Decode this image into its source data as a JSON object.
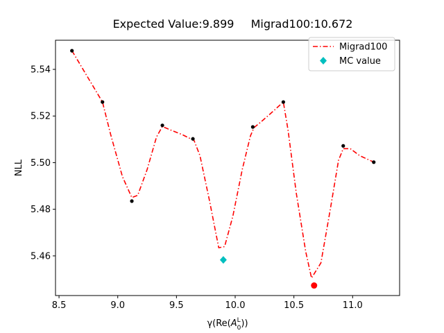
{
  "chart_data": {
    "type": "line",
    "title_parts": [
      "Expected Value:9.899",
      "Migrad100:10.672"
    ],
    "xlabel_prefix": "γ(Re(",
    "xlabel_var": "A",
    "xlabel_sup": "L",
    "xlabel_sub": "0",
    "xlabel_suffix": "))",
    "ylabel": "NLL",
    "xlim": [
      8.47,
      11.4
    ],
    "ylim": [
      5.443,
      5.5525
    ],
    "x_ticks": [
      8.5,
      9.0,
      9.5,
      10.0,
      10.5,
      11.0
    ],
    "x_tick_labels": [
      "8.5",
      "9.0",
      "9.5",
      "10.0",
      "10.5",
      "11.0"
    ],
    "y_ticks": [
      5.46,
      5.48,
      5.5,
      5.52,
      5.54
    ],
    "y_tick_labels": [
      "5.46",
      "5.48",
      "5.50",
      "5.52",
      "5.54"
    ],
    "grid": false,
    "legend_position": "top-right",
    "series": [
      {
        "name": "Migrad100",
        "style": "dash-dot",
        "color": "#ff0000",
        "points": [
          [
            8.61,
            5.548
          ],
          [
            8.87,
            5.526
          ],
          [
            8.94,
            5.512
          ],
          [
            9.04,
            5.494
          ],
          [
            9.12,
            5.485
          ],
          [
            9.17,
            5.486
          ],
          [
            9.25,
            5.497
          ],
          [
            9.33,
            5.511
          ],
          [
            9.38,
            5.5155
          ],
          [
            9.45,
            5.514
          ],
          [
            9.55,
            5.512
          ],
          [
            9.65,
            5.5095
          ],
          [
            9.7,
            5.503
          ],
          [
            9.78,
            5.484
          ],
          [
            9.86,
            5.4635
          ],
          [
            9.91,
            5.464
          ],
          [
            9.98,
            5.477
          ],
          [
            10.06,
            5.497
          ],
          [
            10.13,
            5.5115
          ],
          [
            10.16,
            5.515
          ],
          [
            10.22,
            5.5175
          ],
          [
            10.3,
            5.521
          ],
          [
            10.41,
            5.526
          ],
          [
            10.45,
            5.514
          ],
          [
            10.52,
            5.487
          ],
          [
            10.6,
            5.462
          ],
          [
            10.65,
            5.4505
          ],
          [
            10.73,
            5.457
          ],
          [
            10.81,
            5.48
          ],
          [
            10.88,
            5.501
          ],
          [
            10.92,
            5.506
          ],
          [
            10.98,
            5.506
          ],
          [
            11.06,
            5.503
          ],
          [
            11.19,
            5.5
          ]
        ]
      },
      {
        "name": "scan points",
        "color": "#000000",
        "points": [
          [
            8.61,
            5.548
          ],
          [
            8.87,
            5.526
          ],
          [
            9.12,
            5.4835
          ],
          [
            9.38,
            5.516
          ],
          [
            9.64,
            5.5102
          ],
          [
            10.15,
            5.5153
          ],
          [
            10.41,
            5.526
          ],
          [
            10.92,
            5.5072
          ],
          [
            11.18,
            5.5002
          ]
        ]
      },
      {
        "name": "MC value",
        "marker": "diamond",
        "color": "#00bfbf",
        "points": [
          [
            9.899,
            5.4583
          ]
        ]
      },
      {
        "name": "Migrad100 minimum",
        "marker": "circle",
        "color": "#ff0000",
        "points": [
          [
            10.672,
            5.4473
          ]
        ]
      }
    ],
    "legend": [
      {
        "label": "Migrad100",
        "type": "line",
        "color": "#ff0000"
      },
      {
        "label": "MC value",
        "type": "diamond",
        "color": "#00bfbf"
      }
    ]
  }
}
